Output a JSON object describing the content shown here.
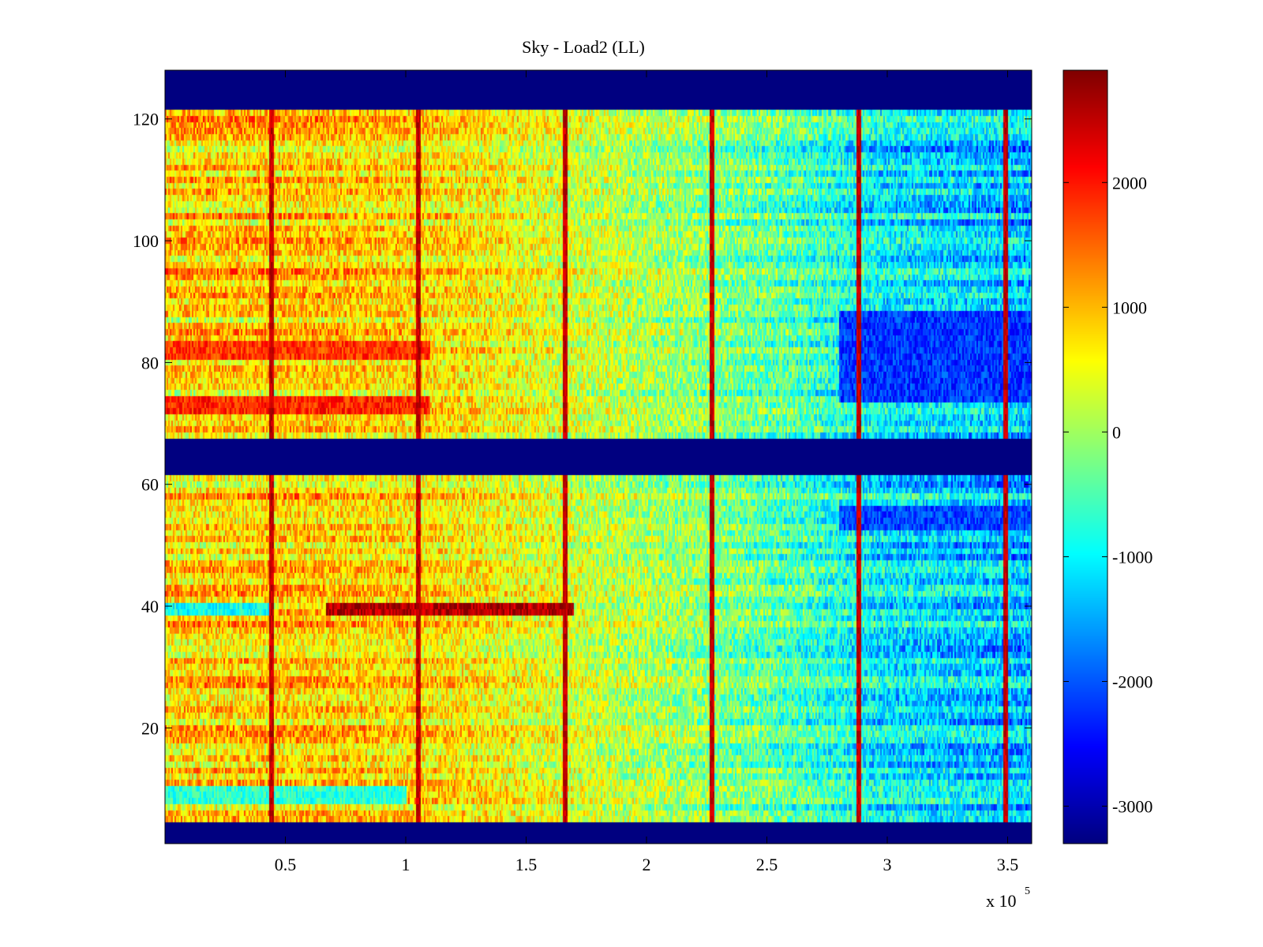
{
  "chart_data": {
    "type": "heatmap",
    "title": "Sky - Load2 (LL)",
    "xlabel": "",
    "ylabel": "",
    "x_multiplier_label": "x 10",
    "x_multiplier_exponent": "5",
    "xlim": [
      0,
      360000
    ],
    "ylim": [
      1,
      128
    ],
    "x_ticks": [
      {
        "value": 50000,
        "label": "0.5"
      },
      {
        "value": 100000,
        "label": "1"
      },
      {
        "value": 150000,
        "label": "1.5"
      },
      {
        "value": 200000,
        "label": "2"
      },
      {
        "value": 250000,
        "label": "2.5"
      },
      {
        "value": 300000,
        "label": "3"
      },
      {
        "value": 350000,
        "label": "3.5"
      }
    ],
    "y_ticks": [
      {
        "value": 20,
        "label": "20"
      },
      {
        "value": 40,
        "label": "40"
      },
      {
        "value": 60,
        "label": "60"
      },
      {
        "value": 80,
        "label": "80"
      },
      {
        "value": 100,
        "label": "100"
      },
      {
        "value": 120,
        "label": "120"
      }
    ],
    "colorbar": {
      "colormap": "jet",
      "range": [
        -3300,
        2900
      ],
      "ticks": [
        {
          "value": -3000,
          "label": "-3000"
        },
        {
          "value": -2000,
          "label": "-2000"
        },
        {
          "value": -1000,
          "label": "-1000"
        },
        {
          "value": 0,
          "label": "0"
        },
        {
          "value": 1000,
          "label": "1000"
        },
        {
          "value": 2000,
          "label": "2000"
        }
      ]
    },
    "masked_channel_bands": [
      [
        1,
        4
      ],
      [
        62,
        67
      ],
      [
        122,
        128
      ]
    ],
    "spike_columns_x": [
      44000,
      105000,
      166000,
      227000,
      288000,
      349000
    ],
    "spike_value": 2500,
    "x_trend": [
      {
        "x": 0,
        "value": 800
      },
      {
        "x": 60000,
        "value": 900
      },
      {
        "x": 120000,
        "value": 700
      },
      {
        "x": 170000,
        "value": 300
      },
      {
        "x": 220000,
        "value": -100
      },
      {
        "x": 260000,
        "value": -500
      },
      {
        "x": 300000,
        "value": -1100
      },
      {
        "x": 360000,
        "value": -1400
      }
    ],
    "features": [
      {
        "channels": [
          72,
          74
        ],
        "x_range": [
          0,
          110000
        ],
        "value": 1900
      },
      {
        "channels": [
          81,
          83
        ],
        "x_range": [
          0,
          110000
        ],
        "value": 1800
      },
      {
        "channels": [
          39,
          40
        ],
        "x_range": [
          67000,
          170000
        ],
        "value": 2600
      },
      {
        "channels": [
          39,
          40
        ],
        "x_range": [
          0,
          44000
        ],
        "value": -900
      },
      {
        "channels": [
          8,
          10
        ],
        "x_range": [
          0,
          100000
        ],
        "value": -700
      },
      {
        "channels": [
          74,
          88
        ],
        "x_range": [
          280000,
          360000
        ],
        "value": -2200
      },
      {
        "channels": [
          53,
          56
        ],
        "x_range": [
          280000,
          360000
        ],
        "value": -2100
      }
    ]
  }
}
